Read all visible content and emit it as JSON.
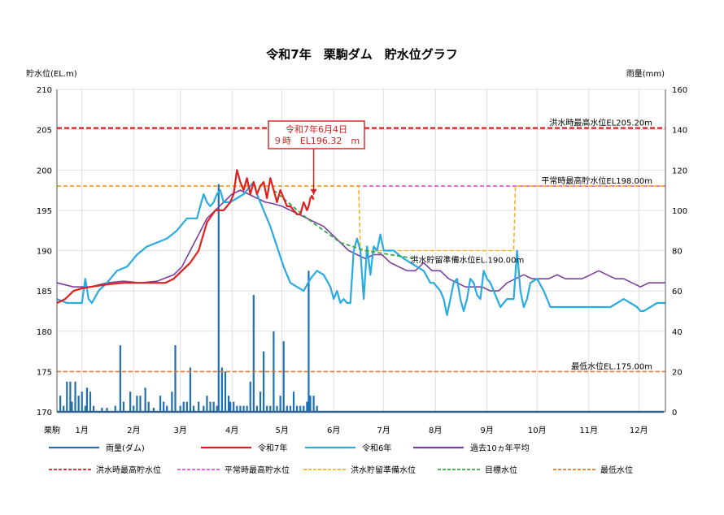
{
  "chart_data": {
    "type": "line",
    "title": "令和7年　栗駒ダム　貯水位グラフ",
    "left_axis_label": "貯水位(EL.m)",
    "right_axis_label": "雨量(mm)",
    "x_corner_label": "栗駒",
    "left_ylim": [
      170,
      210
    ],
    "left_ticks": [
      170,
      175,
      180,
      185,
      190,
      195,
      200,
      205,
      210
    ],
    "right_ylim": [
      0,
      160
    ],
    "right_ticks": [
      0,
      20,
      40,
      60,
      80,
      100,
      120,
      140,
      160
    ],
    "xlim": [
      0,
      365
    ],
    "months": [
      {
        "label": "1月",
        "day": 15
      },
      {
        "label": "2月",
        "day": 46
      },
      {
        "label": "3月",
        "day": 74
      },
      {
        "label": "4月",
        "day": 105
      },
      {
        "label": "5月",
        "day": 135
      },
      {
        "label": "6月",
        "day": 166
      },
      {
        "label": "7月",
        "day": 196
      },
      {
        "label": "8月",
        "day": 227
      },
      {
        "label": "9月",
        "day": 258
      },
      {
        "label": "10月",
        "day": 288
      },
      {
        "label": "11月",
        "day": 319
      },
      {
        "label": "12月",
        "day": 349
      }
    ],
    "colors": {
      "rain": "#1f6fb5",
      "r7": "#e0201e",
      "r6": "#29abe2",
      "avg10": "#7b3fa0",
      "flood_max": "#d42020",
      "normal_max": "#e84fd0",
      "flood_reserve": "#f5b21b",
      "target": "#3aa845",
      "min": "#e07a30"
    },
    "annotation": {
      "line1": "令和7年6月4日",
      "line2": "９時　EL196.32　m",
      "day": 154,
      "value": 196.32
    },
    "reference_lines": [
      {
        "key": "flood_max",
        "label": "洪水時最高水位EL205.20m",
        "value": 205.2
      },
      {
        "key": "normal_max",
        "label": "平常時最高貯水位EL198.00m",
        "value": 198.0
      },
      {
        "key": "flood_reserve",
        "label": "洪水貯留準備水位EL.190.00m",
        "value": 190.0
      },
      {
        "key": "min",
        "label": "最低水位EL.175.00m",
        "value": 175.0
      }
    ],
    "series": [
      {
        "key": "r7",
        "name": "令和7年",
        "x": [
          0,
          5,
          10,
          15,
          20,
          30,
          40,
          50,
          60,
          65,
          70,
          75,
          80,
          85,
          90,
          95,
          98,
          100,
          102,
          104,
          106,
          108,
          110,
          112,
          114,
          116,
          118,
          120,
          122,
          124,
          126,
          128,
          130,
          132,
          134,
          136,
          138,
          140,
          142,
          144,
          146,
          148,
          150,
          151,
          152,
          153,
          154
        ],
        "y": [
          183.5,
          184,
          185,
          185.3,
          185.5,
          185.8,
          186,
          186,
          186,
          186,
          186.5,
          187.5,
          188.5,
          190,
          193.5,
          195,
          195,
          195,
          195.5,
          196,
          197,
          200,
          198.5,
          197.5,
          199,
          197,
          198.5,
          197,
          198,
          198.5,
          196.5,
          199,
          197.5,
          196,
          197.5,
          196.5,
          195.5,
          195.5,
          195,
          194.5,
          194.5,
          196,
          195,
          195.5,
          196.5,
          196.8,
          196.32
        ]
      },
      {
        "key": "r6",
        "name": "令和6年",
        "x": [
          0,
          6,
          10,
          15,
          17,
          19,
          21,
          25,
          30,
          36,
          42,
          48,
          54,
          60,
          66,
          72,
          78,
          84,
          88,
          90,
          92,
          94,
          96,
          98,
          100,
          104,
          108,
          112,
          116,
          118,
          120,
          124,
          128,
          132,
          136,
          140,
          144,
          148,
          152,
          156,
          160,
          164,
          166,
          168,
          170,
          172,
          174,
          176,
          178,
          180,
          182,
          184,
          186,
          188,
          190,
          192,
          194,
          196,
          198,
          200,
          202,
          205,
          208,
          212,
          216,
          220,
          224,
          226,
          228,
          230,
          232,
          234,
          236,
          238,
          240,
          242,
          244,
          246,
          248,
          250,
          252,
          254,
          256,
          258,
          260,
          262,
          264,
          266,
          268,
          270,
          272,
          274,
          276,
          278,
          280,
          282,
          284,
          288,
          292,
          296,
          300,
          304,
          308,
          312,
          316,
          320,
          324,
          328,
          332,
          336,
          340,
          344,
          348,
          350,
          352,
          356,
          360,
          365
        ],
        "y": [
          184,
          183.5,
          183.5,
          183.5,
          186.5,
          184,
          183.5,
          185,
          186,
          187.5,
          188,
          189.5,
          190.5,
          191,
          191.5,
          192.5,
          194,
          194,
          197,
          196,
          195.5,
          196,
          197,
          197.5,
          196,
          196,
          196.5,
          197,
          198,
          198.5,
          197,
          195,
          193,
          190.5,
          188,
          186,
          185.5,
          185,
          186.5,
          187.5,
          187,
          185.5,
          184,
          185,
          183.5,
          184,
          183.5,
          183.5,
          190,
          191.5,
          190,
          184,
          190.5,
          187,
          190.5,
          190,
          192,
          190,
          190,
          190,
          190,
          189.5,
          189,
          188.5,
          188,
          187.5,
          186,
          186,
          185.5,
          185,
          184,
          182,
          184,
          186,
          186.5,
          184,
          182.5,
          184,
          186.5,
          186,
          184.5,
          184,
          187.5,
          186.5,
          186,
          185,
          184,
          183,
          183.5,
          184,
          184,
          184,
          190,
          185,
          183,
          184,
          186,
          186.5,
          185,
          183,
          183,
          183,
          183,
          183,
          183,
          183,
          183,
          183,
          183,
          183.5,
          184,
          183.5,
          183,
          182.5,
          182.5,
          183,
          183.5,
          183.5
        ]
      },
      {
        "key": "avg10",
        "name": "過去10ヵ年平均",
        "x": [
          0,
          10,
          20,
          30,
          40,
          50,
          60,
          70,
          75,
          80,
          85,
          90,
          95,
          100,
          105,
          110,
          115,
          120,
          125,
          130,
          135,
          140,
          145,
          150,
          155,
          160,
          165,
          170,
          175,
          180,
          185,
          190,
          195,
          200,
          205,
          210,
          215,
          220,
          225,
          230,
          235,
          240,
          245,
          250,
          255,
          260,
          265,
          270,
          275,
          280,
          285,
          290,
          295,
          300,
          305,
          310,
          315,
          320,
          325,
          330,
          335,
          340,
          345,
          350,
          355,
          360,
          365
        ],
        "y": [
          186,
          185.5,
          185.5,
          186,
          186.2,
          186,
          186.2,
          187,
          188,
          190,
          192,
          194,
          195,
          196,
          197,
          197.5,
          197,
          196.5,
          196,
          195.8,
          195.5,
          195,
          194.5,
          194,
          193.5,
          193,
          192,
          191,
          190,
          189.5,
          189,
          189.5,
          189.5,
          188.5,
          188,
          187.5,
          187.5,
          188.5,
          187.5,
          187.5,
          186.5,
          186,
          185.5,
          185.5,
          185.5,
          185,
          185,
          186,
          186.5,
          187,
          186.5,
          186.5,
          186.5,
          187,
          186.5,
          186.5,
          186.5,
          187,
          187.5,
          187,
          186.5,
          186.5,
          186,
          185.5,
          186,
          186,
          186
        ]
      },
      {
        "key": "flood_reserve",
        "name": "洪水貯留準備水位",
        "x": [
          0,
          181,
          182,
          274,
          275,
          365
        ],
        "y": [
          198,
          198,
          190,
          190,
          198,
          198
        ]
      },
      {
        "key": "target",
        "name": "目標水位",
        "x": [
          130,
          150,
          170,
          185,
          200,
          215
        ],
        "y": [
          197.5,
          194,
          191,
          190,
          189.5,
          189
        ]
      },
      {
        "key": "flood_max",
        "name": "洪水時最高貯水位",
        "x": [
          0,
          365
        ],
        "y": [
          205.2,
          205.2
        ]
      },
      {
        "key": "normal_max",
        "name": "平常時最高貯水位",
        "x": [
          0,
          365
        ],
        "y": [
          198,
          198
        ]
      },
      {
        "key": "min",
        "name": "最低水位",
        "x": [
          0,
          365
        ],
        "y": [
          175,
          175
        ]
      }
    ],
    "rain": {
      "name": "雨量(ダム)",
      "days": [
        2,
        4,
        6,
        8,
        9,
        11,
        13,
        15,
        17,
        18,
        20,
        22,
        27,
        30,
        35,
        38,
        40,
        44,
        46,
        48,
        50,
        53,
        55,
        58,
        62,
        64,
        66,
        69,
        71,
        74,
        76,
        78,
        80,
        82,
        85,
        88,
        90,
        92,
        94,
        96,
        97,
        99,
        101,
        103,
        104,
        106,
        108,
        110,
        112,
        114,
        116,
        118,
        120,
        122,
        124,
        126,
        128,
        130,
        132,
        134,
        136,
        138,
        140,
        142,
        144,
        146,
        148,
        150,
        151,
        152,
        154,
        156
      ],
      "values": [
        8,
        3,
        15,
        15,
        5,
        15,
        8,
        10,
        3,
        12,
        10,
        3,
        2,
        2,
        3,
        33,
        5,
        10,
        3,
        8,
        8,
        12,
        5,
        2,
        8,
        5,
        3,
        10,
        33,
        3,
        5,
        5,
        22,
        3,
        5,
        3,
        8,
        5,
        5,
        3,
        113,
        22,
        20,
        8,
        5,
        5,
        3,
        3,
        3,
        3,
        15,
        58,
        3,
        10,
        30,
        3,
        3,
        40,
        3,
        8,
        35,
        3,
        3,
        10,
        3,
        3,
        3,
        5,
        70,
        8,
        8,
        3
      ]
    },
    "legend_row1": [
      {
        "key": "rain",
        "label": "雨量(ダム)",
        "style": "solid"
      },
      {
        "key": "r7",
        "label": "令和7年",
        "style": "solid"
      },
      {
        "key": "r6",
        "label": "令和6年",
        "style": "solid"
      },
      {
        "key": "avg10",
        "label": "過去10ヵ年平均",
        "style": "solid"
      }
    ],
    "legend_row2": [
      {
        "key": "flood_max",
        "label": "洪水時最高貯水位",
        "style": "dash"
      },
      {
        "key": "normal_max",
        "label": "平常時最高貯水位",
        "style": "dash"
      },
      {
        "key": "flood_reserve",
        "label": "洪水貯留準備水位",
        "style": "dash"
      },
      {
        "key": "target",
        "label": "目標水位",
        "style": "dash"
      },
      {
        "key": "min",
        "label": "最低水位",
        "style": "dash"
      }
    ]
  }
}
